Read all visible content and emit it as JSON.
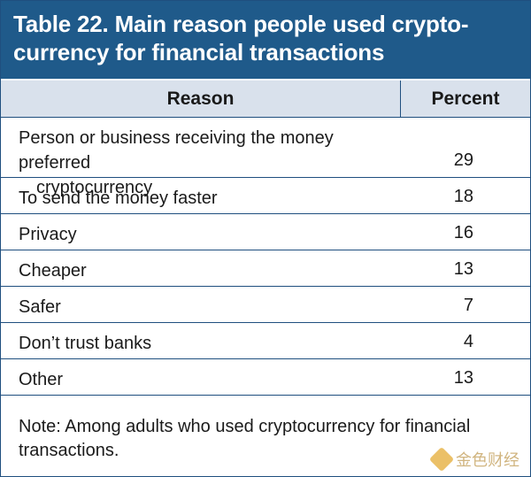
{
  "title": {
    "line1": "Table 22. Main reason people used crypto-",
    "line2": "currency for financial transactions"
  },
  "table": {
    "headers": {
      "reason": "Reason",
      "percent": "Percent"
    },
    "rows": [
      {
        "reason_line1": "Person or business receiving the money preferred",
        "reason_line2": "cryptocurrency",
        "percent": "29"
      },
      {
        "reason": "To send the money faster",
        "percent": "18"
      },
      {
        "reason": "Privacy",
        "percent": "16"
      },
      {
        "reason": "Cheaper",
        "percent": "13"
      },
      {
        "reason": "Safer",
        "percent": "7"
      },
      {
        "reason": "Don’t trust banks",
        "percent": "4"
      },
      {
        "reason": "Other",
        "percent": "13"
      }
    ]
  },
  "note": {
    "line1": "Note: Among adults who used cryptocurrency for financial",
    "line2": "transactions."
  },
  "watermark": {
    "text": "金色财经"
  },
  "colors": {
    "title_bg": "#1f5a8a",
    "header_bg": "#d9e1ec",
    "border": "#1f4f7f"
  }
}
